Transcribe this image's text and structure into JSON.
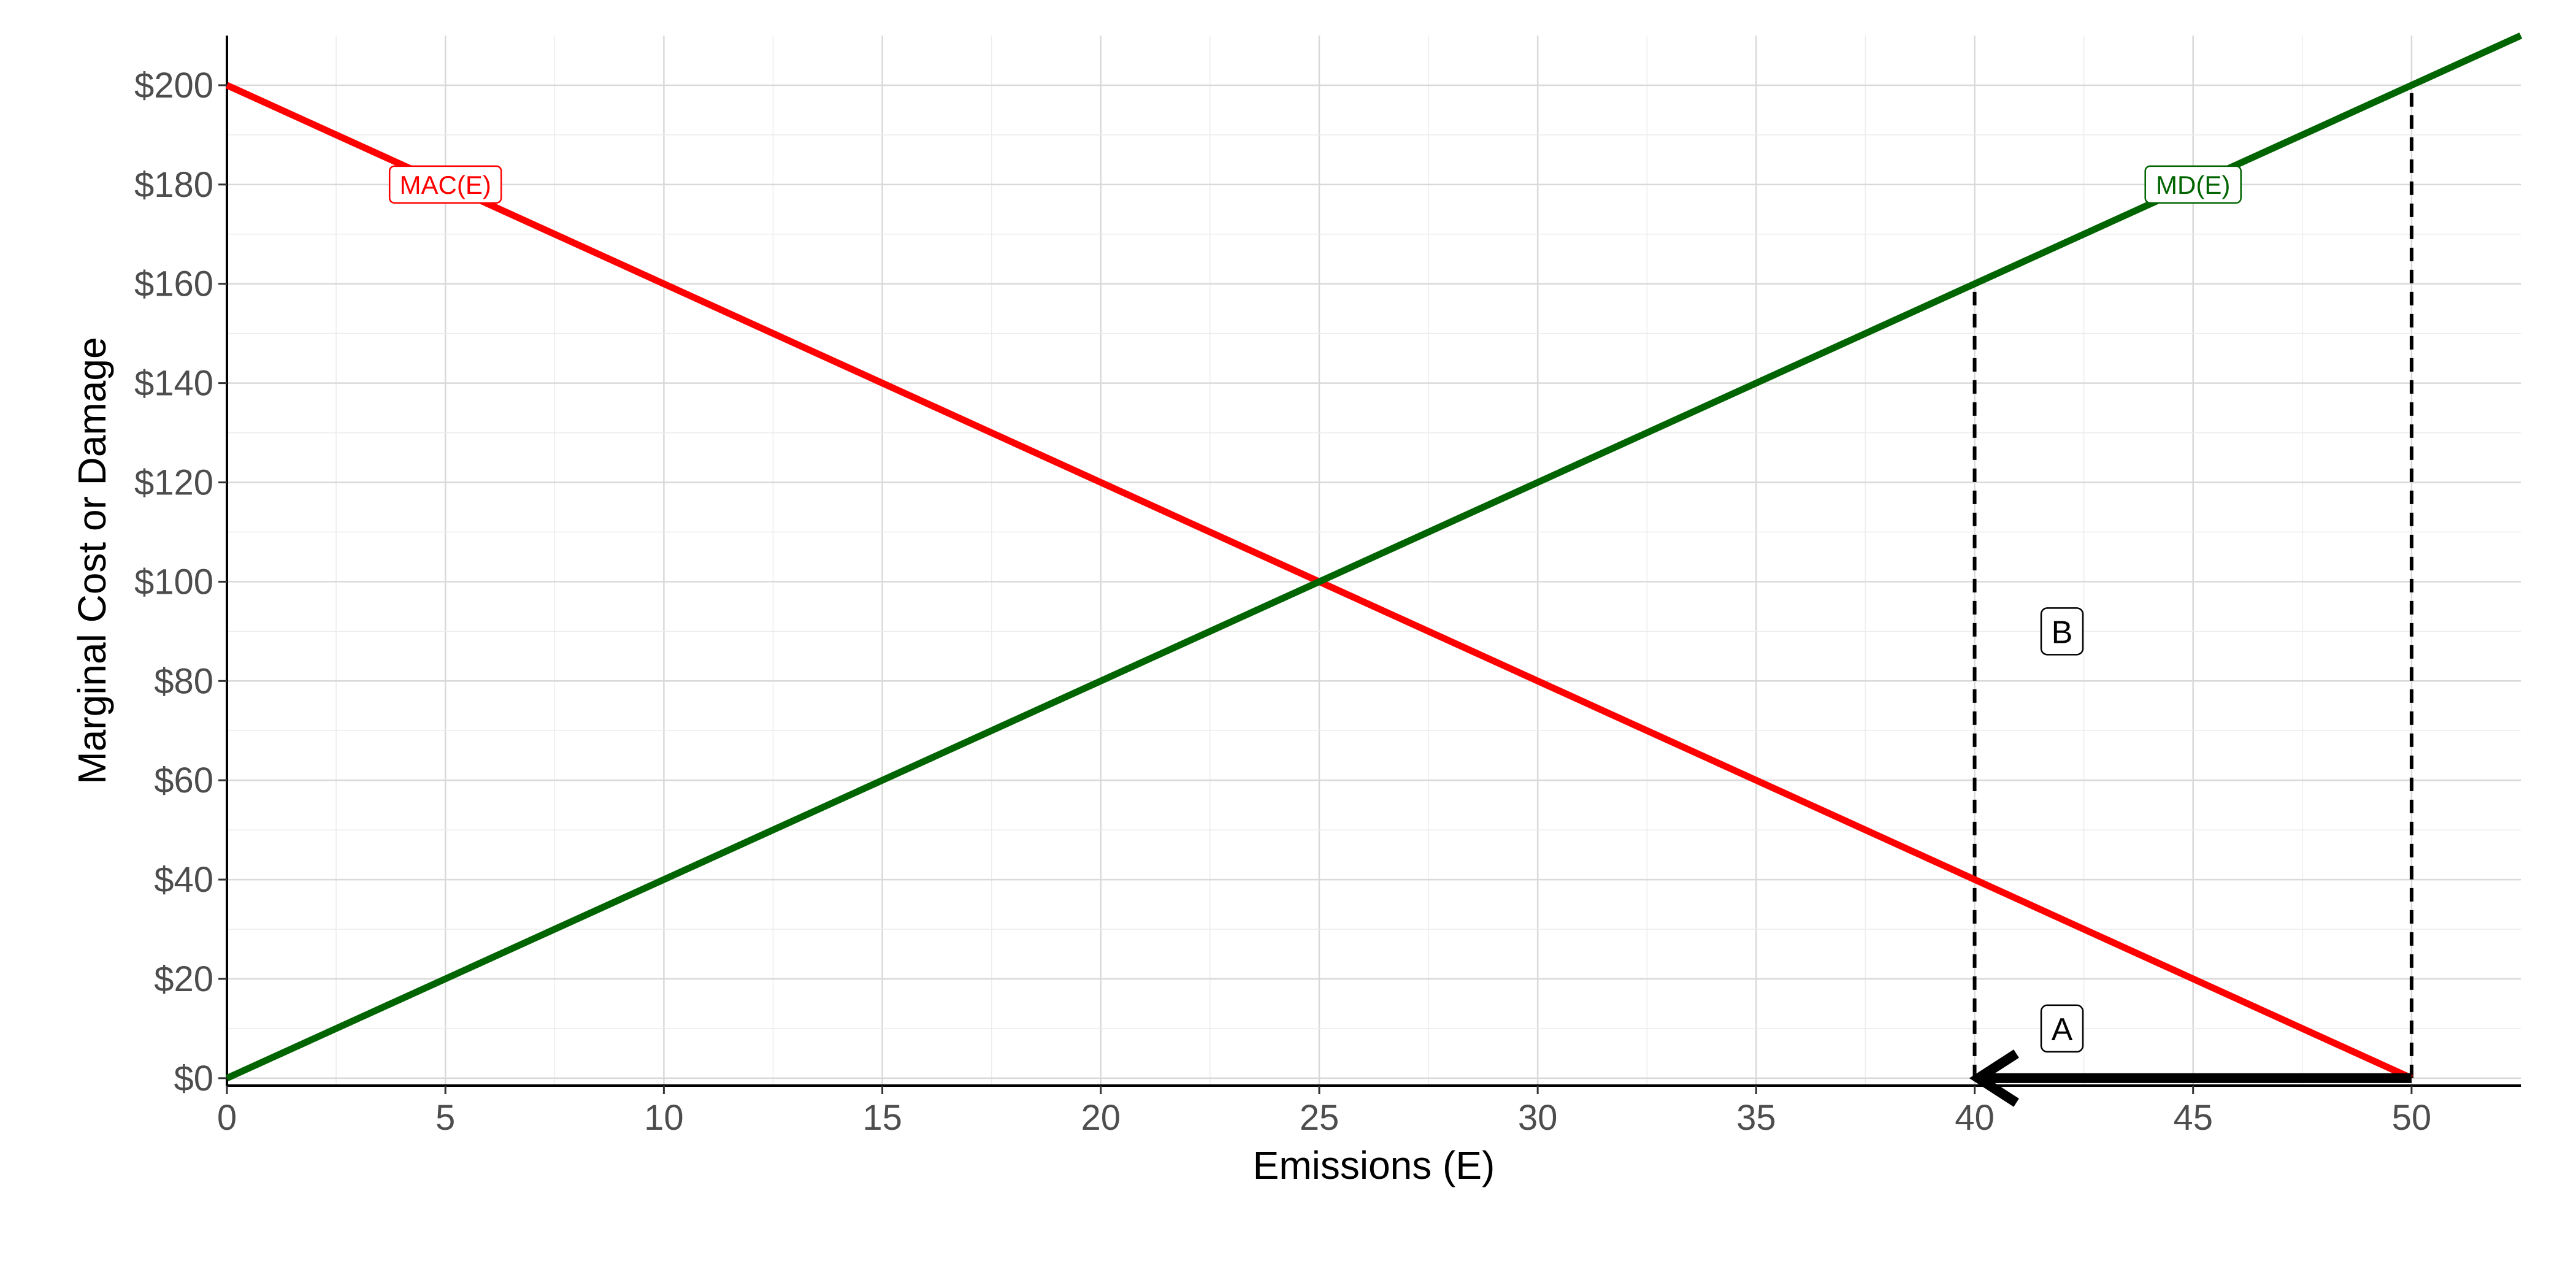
{
  "chart_data": {
    "type": "line",
    "title": "",
    "xlabel": "Emissions (E)",
    "ylabel": "Marginal Cost or Damage",
    "xlim": [
      0,
      52.5
    ],
    "ylim": [
      -1.5,
      210
    ],
    "x_ticks": [
      0,
      5,
      10,
      15,
      20,
      25,
      30,
      35,
      40,
      45,
      50
    ],
    "x_tick_labels": [
      "0",
      "5",
      "10",
      "15",
      "20",
      "25",
      "30",
      "35",
      "40",
      "45",
      "50"
    ],
    "y_ticks": [
      0,
      20,
      40,
      60,
      80,
      100,
      120,
      140,
      160,
      180,
      200
    ],
    "y_tick_labels": [
      "$0",
      "$20",
      "$40",
      "$60",
      "$80",
      "$100",
      "$120",
      "$140",
      "$160",
      "$180",
      "$200"
    ],
    "grid": true,
    "series": [
      {
        "name": "MAC(E)",
        "color": "#ff0000",
        "x": [
          0,
          50
        ],
        "y": [
          200,
          0
        ],
        "label": {
          "text": "MAC(E)",
          "x": 5,
          "y": 180
        }
      },
      {
        "name": "MD(E)",
        "color": "#006400",
        "x": [
          0,
          52.5
        ],
        "y": [
          0,
          210
        ],
        "label": {
          "text": "MD(E)",
          "x": 45,
          "y": 180
        }
      }
    ],
    "vlines": [
      {
        "x": 40,
        "y_from": 0,
        "y_to": 160,
        "style": "dashed"
      },
      {
        "x": 50,
        "y_from": 0,
        "y_to": 200,
        "style": "dashed"
      }
    ],
    "arrow": {
      "from": [
        50,
        0
      ],
      "to": [
        40,
        0
      ]
    },
    "annotations": [
      {
        "text": "A",
        "x": 42,
        "y": 10
      },
      {
        "text": "B",
        "x": 42,
        "y": 90
      }
    ]
  }
}
